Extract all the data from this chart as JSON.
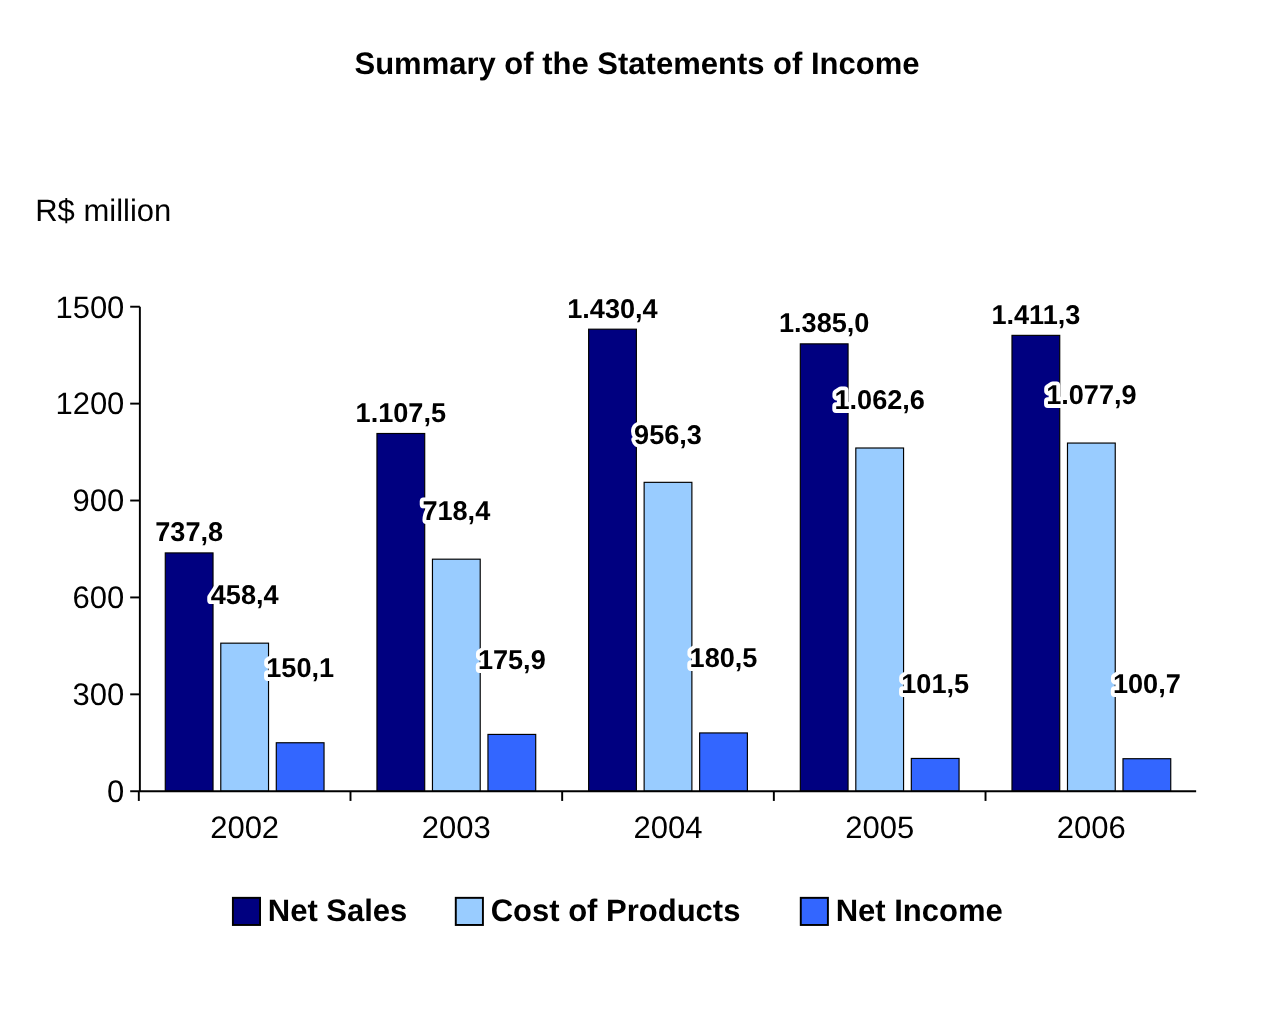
{
  "chart_data": {
    "type": "bar",
    "title": "Summary of the Statements of Income",
    "ylabel": "R$ million",
    "categories": [
      "2002",
      "2003",
      "2004",
      "2005",
      "2006"
    ],
    "ylim": [
      0,
      1500
    ],
    "yticks": [
      0,
      300,
      600,
      900,
      1200,
      1500
    ],
    "grid": false,
    "legend": "bottom",
    "series": [
      {
        "name": "Net Sales",
        "color": "#000080",
        "values": [
          737.8,
          1107.5,
          1430.4,
          1385.0,
          1411.3
        ],
        "value_labels": [
          "737,8",
          "1.107,5",
          "1.430,4",
          "1.385,0",
          "1.411,3"
        ]
      },
      {
        "name": "Cost of Products",
        "color": "#99ccff",
        "values": [
          458.4,
          718.4,
          956.3,
          1062.6,
          1077.9
        ],
        "value_labels": [
          "458,4",
          "718,4",
          "956,3",
          "1.062,6",
          "1.077,9"
        ]
      },
      {
        "name": "Net Income",
        "color": "#3366ff",
        "values": [
          150.1,
          175.9,
          180.5,
          101.5,
          100.7
        ],
        "value_labels": [
          "150,1",
          "175,9",
          "180,5",
          "101,5",
          "100,7"
        ]
      }
    ]
  }
}
